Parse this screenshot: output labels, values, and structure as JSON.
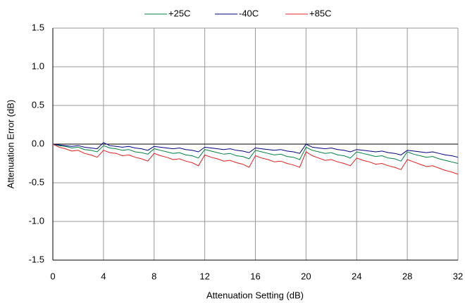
{
  "chart_data": {
    "type": "line",
    "x_label": "Attenuation Setting (dB)",
    "y_label": "Attenuation Error (dB)",
    "xlim": [
      0,
      32
    ],
    "xticks": [
      0,
      4,
      8,
      12,
      16,
      20,
      24,
      28,
      32
    ],
    "ylim": [
      -1.5,
      1.5
    ],
    "yticks": [
      {
        "value": 1.5,
        "label": "1.5"
      },
      {
        "value": 1,
        "label": "1.0"
      },
      {
        "value": 0.5,
        "label": "0.5"
      },
      {
        "value": 0,
        "label": "0.0"
      },
      {
        "value": -0.5,
        "label": "-0.5"
      },
      {
        "value": -1,
        "label": "-1.0"
      },
      {
        "value": -1.5,
        "label": "-1.5"
      }
    ],
    "grid": true,
    "legend": "top",
    "x": [
      0,
      0.5,
      1,
      1.5,
      2,
      2.5,
      3,
      3.5,
      4,
      4.5,
      5,
      5.5,
      6,
      6.5,
      7,
      7.5,
      8,
      8.5,
      9,
      9.5,
      10,
      10.5,
      11,
      11.5,
      12,
      12.5,
      13,
      13.5,
      14,
      14.5,
      15,
      15.5,
      16,
      16.5,
      17,
      17.5,
      18,
      18.5,
      19,
      19.5,
      20,
      20.5,
      21,
      21.5,
      22,
      22.5,
      23,
      23.5,
      24,
      24.5,
      25,
      25.5,
      26,
      26.5,
      27,
      27.5,
      28,
      28.5,
      29,
      29.5,
      30,
      30.5,
      31,
      31.5,
      32
    ],
    "series": [
      {
        "name": "+25C",
        "color": "#008040",
        "values": [
          0,
          -0.02,
          -0.03,
          -0.05,
          -0.04,
          -0.07,
          -0.08,
          -0.1,
          -0.02,
          -0.05,
          -0.06,
          -0.08,
          -0.07,
          -0.1,
          -0.11,
          -0.13,
          -0.06,
          -0.08,
          -0.1,
          -0.12,
          -0.11,
          -0.14,
          -0.15,
          -0.18,
          -0.07,
          -0.09,
          -0.11,
          -0.13,
          -0.12,
          -0.15,
          -0.16,
          -0.19,
          -0.08,
          -0.1,
          -0.12,
          -0.14,
          -0.13,
          -0.16,
          -0.17,
          -0.2,
          -0.04,
          -0.08,
          -0.1,
          -0.12,
          -0.11,
          -0.14,
          -0.15,
          -0.18,
          -0.1,
          -0.12,
          -0.14,
          -0.16,
          -0.15,
          -0.18,
          -0.19,
          -0.22,
          -0.1,
          -0.13,
          -0.15,
          -0.17,
          -0.16,
          -0.19,
          -0.21,
          -0.23,
          -0.25
        ]
      },
      {
        "name": "-40C",
        "color": "#000080",
        "values": [
          0,
          -0.01,
          -0.02,
          -0.03,
          -0.02,
          -0.04,
          -0.05,
          -0.06,
          0.02,
          -0.02,
          -0.03,
          -0.04,
          -0.03,
          -0.05,
          -0.06,
          -0.08,
          -0.03,
          -0.04,
          -0.05,
          -0.06,
          -0.05,
          -0.07,
          -0.08,
          -0.1,
          -0.04,
          -0.05,
          -0.06,
          -0.07,
          -0.06,
          -0.08,
          -0.09,
          -0.11,
          -0.05,
          -0.06,
          -0.07,
          -0.08,
          -0.07,
          -0.09,
          -0.1,
          -0.12,
          0,
          -0.04,
          -0.05,
          -0.06,
          -0.05,
          -0.07,
          -0.08,
          -0.1,
          -0.07,
          -0.08,
          -0.09,
          -0.1,
          -0.09,
          -0.11,
          -0.12,
          -0.14,
          -0.08,
          -0.09,
          -0.1,
          -0.11,
          -0.1,
          -0.12,
          -0.14,
          -0.15,
          -0.17
        ]
      },
      {
        "name": "+85C",
        "color": "#e02020",
        "values": [
          0,
          -0.04,
          -0.06,
          -0.09,
          -0.08,
          -0.12,
          -0.14,
          -0.17,
          -0.08,
          -0.11,
          -0.12,
          -0.15,
          -0.14,
          -0.17,
          -0.19,
          -0.22,
          -0.12,
          -0.15,
          -0.17,
          -0.2,
          -0.19,
          -0.22,
          -0.24,
          -0.28,
          -0.14,
          -0.17,
          -0.19,
          -0.22,
          -0.21,
          -0.24,
          -0.26,
          -0.3,
          -0.15,
          -0.18,
          -0.2,
          -0.23,
          -0.22,
          -0.25,
          -0.27,
          -0.3,
          -0.1,
          -0.15,
          -0.18,
          -0.21,
          -0.2,
          -0.23,
          -0.25,
          -0.28,
          -0.18,
          -0.21,
          -0.23,
          -0.26,
          -0.25,
          -0.28,
          -0.3,
          -0.33,
          -0.2,
          -0.23,
          -0.26,
          -0.29,
          -0.28,
          -0.31,
          -0.34,
          -0.36,
          -0.39
        ]
      }
    ]
  }
}
